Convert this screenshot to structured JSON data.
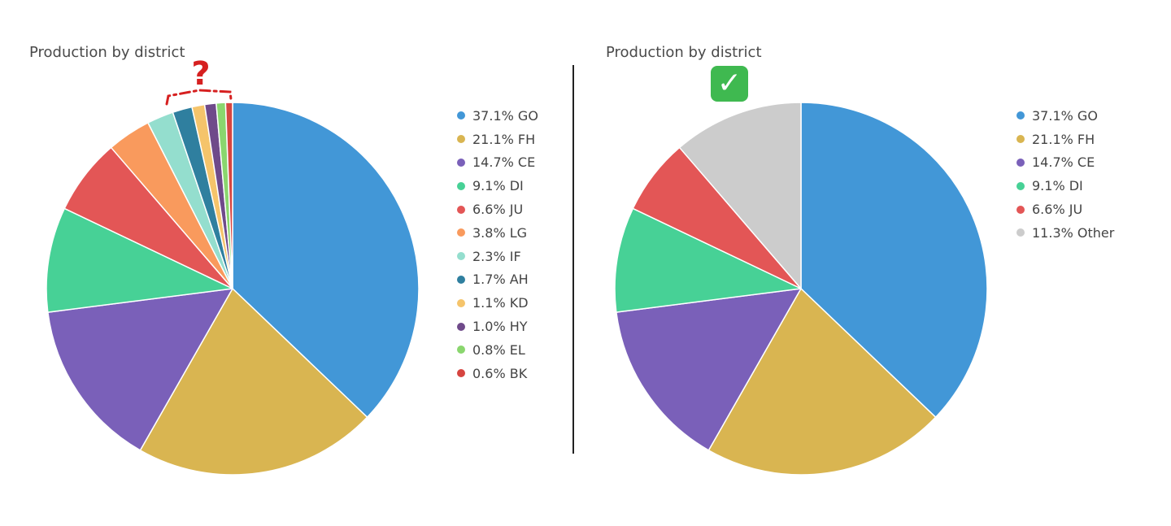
{
  "colors": {
    "GO": "#4297d7",
    "FH": "#d9b551",
    "CE": "#7a60b9",
    "DI": "#47d196",
    "JU": "#e35656",
    "LG": "#f99a5d",
    "IF": "#94dece",
    "AH": "#2f7f9f",
    "KD": "#f5c46b",
    "HY": "#6f4a8a",
    "EL": "#8ad66e",
    "BK": "#d64540",
    "Other": "#cccccc",
    "annotation": "#d62020",
    "check": "#3fb950"
  },
  "annotation": {
    "question_mark": "?",
    "check_icon": "check-mark-icon",
    "check_symbol": "✓"
  },
  "chart_data": [
    {
      "type": "pie",
      "title": "Production by district",
      "start_angle_deg": 0,
      "direction": "clockwise",
      "slices": [
        {
          "key": "GO",
          "value": 37.1,
          "label": "37.1% GO"
        },
        {
          "key": "FH",
          "value": 21.1,
          "label": "21.1% FH"
        },
        {
          "key": "CE",
          "value": 14.7,
          "label": "14.7% CE"
        },
        {
          "key": "DI",
          "value": 9.1,
          "label": "9.1% DI"
        },
        {
          "key": "JU",
          "value": 6.6,
          "label": "6.6% JU"
        },
        {
          "key": "LG",
          "value": 3.8,
          "label": "3.8% LG"
        },
        {
          "key": "IF",
          "value": 2.3,
          "label": "2.3% IF"
        },
        {
          "key": "AH",
          "value": 1.7,
          "label": "1.7% AH"
        },
        {
          "key": "KD",
          "value": 1.1,
          "label": "1.1% KD"
        },
        {
          "key": "HY",
          "value": 1.0,
          "label": "1.0% HY"
        },
        {
          "key": "EL",
          "value": 0.8,
          "label": "0.8% EL"
        },
        {
          "key": "BK",
          "value": 0.6,
          "label": "0.6% BK"
        }
      ],
      "legend_position": "right"
    },
    {
      "type": "pie",
      "title": "Production by district",
      "start_angle_deg": 0,
      "direction": "clockwise",
      "slices": [
        {
          "key": "GO",
          "value": 37.1,
          "label": "37.1% GO"
        },
        {
          "key": "FH",
          "value": 21.1,
          "label": "21.1% FH"
        },
        {
          "key": "CE",
          "value": 14.7,
          "label": "14.7% CE"
        },
        {
          "key": "DI",
          "value": 9.1,
          "label": "9.1% DI"
        },
        {
          "key": "JU",
          "value": 6.6,
          "label": "6.6% JU"
        },
        {
          "key": "Other",
          "value": 11.3,
          "label": "11.3% Other"
        }
      ],
      "legend_position": "right"
    }
  ]
}
